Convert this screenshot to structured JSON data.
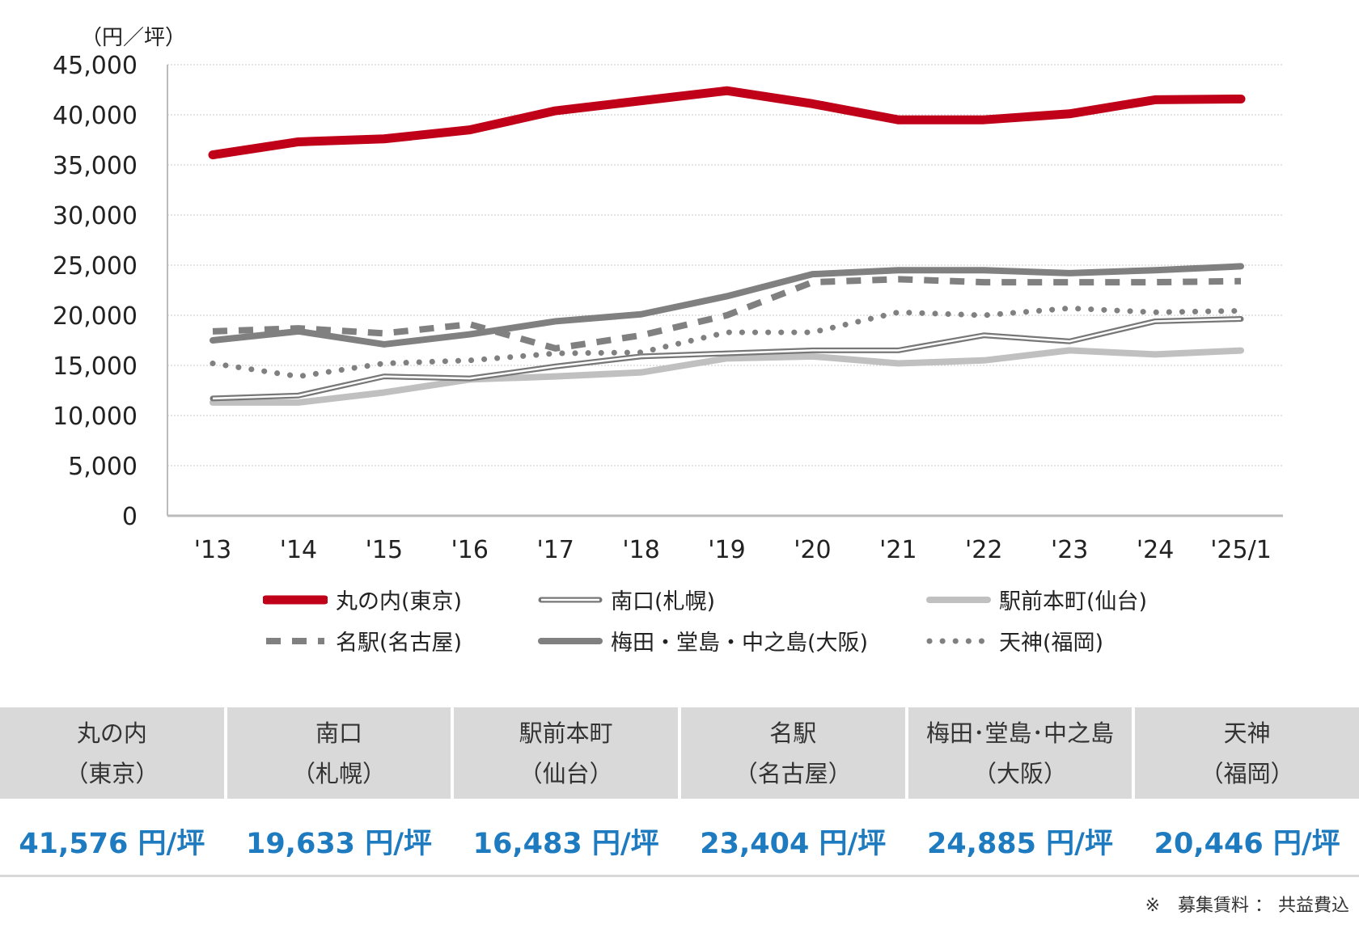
{
  "chart_data": {
    "type": "line",
    "unit_label": "（円／坪）",
    "x": [
      "'13",
      "'14",
      "'15",
      "'16",
      "'17",
      "'18",
      "'19",
      "'20",
      "'21",
      "'22",
      "'23",
      "'24",
      "'25/1"
    ],
    "ylim": [
      0,
      45000
    ],
    "yticks": [
      "0",
      "5,000",
      "10,000",
      "15,000",
      "20,000",
      "25,000",
      "30,000",
      "35,000",
      "40,000",
      "45,000"
    ],
    "grid": true,
    "legend_position": "bottom",
    "series": [
      {
        "name": "丸の内(東京)",
        "style": "solid-thick",
        "color": "#c00018",
        "values": [
          36000,
          37300,
          37600,
          38500,
          40400,
          41400,
          42400,
          41100,
          39500,
          39500,
          40100,
          41500,
          41576
        ]
      },
      {
        "name": "南口(札幌)",
        "style": "double",
        "color": "#777777",
        "values": [
          11700,
          12000,
          13900,
          13700,
          14900,
          15900,
          16200,
          16500,
          16500,
          18000,
          17400,
          19400,
          19633
        ]
      },
      {
        "name": "駅前本町(仙台)",
        "style": "solid-light",
        "color": "#c0c0c0",
        "values": [
          11300,
          11300,
          12300,
          13600,
          13900,
          14300,
          15700,
          15900,
          15200,
          15500,
          16500,
          16100,
          16483
        ]
      },
      {
        "name": "名駅(名古屋)",
        "style": "dashed",
        "color": "#808080",
        "values": [
          18400,
          18700,
          18200,
          19100,
          16700,
          18000,
          20000,
          23300,
          23600,
          23300,
          23300,
          23300,
          23404
        ]
      },
      {
        "name": "梅田・堂島・中之島(大阪)",
        "style": "solid",
        "color": "#808080",
        "values": [
          17500,
          18400,
          17100,
          18100,
          19400,
          20100,
          21900,
          24100,
          24500,
          24500,
          24200,
          24500,
          24885
        ]
      },
      {
        "name": "天神(福岡)",
        "style": "dotted",
        "color": "#808080",
        "values": [
          15200,
          13900,
          15200,
          15500,
          16200,
          16300,
          18300,
          18300,
          20300,
          20000,
          20700,
          20300,
          20446
        ]
      }
    ]
  },
  "table": {
    "headers": [
      {
        "l1": "丸の内",
        "l2": "（東京）"
      },
      {
        "l1": "南口",
        "l2": "（札幌）"
      },
      {
        "l1": "駅前本町",
        "l2": "（仙台）"
      },
      {
        "l1": "名駅",
        "l2": "（名古屋）"
      },
      {
        "l1": "梅田･堂島･中之島",
        "l2": "（大阪）"
      },
      {
        "l1": "天神",
        "l2": "（福岡）"
      }
    ],
    "values": [
      "41,576 円/坪",
      "19,633 円/坪",
      "16,483 円/坪",
      "23,404 円/坪",
      "24,885 円/坪",
      "20,446 円/坪"
    ]
  },
  "footnote": "※　募集賃料 ： 共益費込"
}
